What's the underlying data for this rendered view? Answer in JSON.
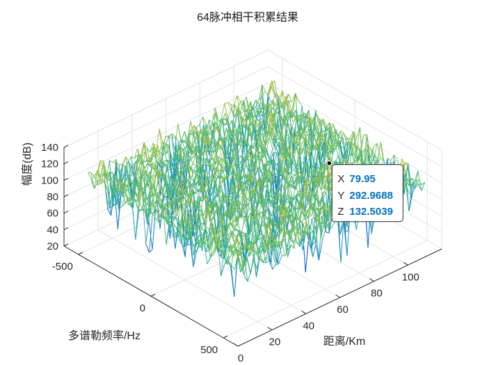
{
  "chart_data": {
    "type": "surface",
    "title": "64脉冲相干积累结果",
    "xlabel": "距离/Km",
    "ylabel": "多谱勒频率/Hz",
    "zlabel": "幅度(dB)",
    "x_range": [
      0,
      120
    ],
    "y_range": [
      -600,
      600
    ],
    "z_range": [
      20,
      140
    ],
    "x_ticks": [
      "0",
      "20",
      "40",
      "60",
      "80",
      "100"
    ],
    "y_ticks": [
      "-500",
      "0",
      "500"
    ],
    "z_ticks": [
      "20",
      "40",
      "60",
      "80",
      "100",
      "120",
      "140"
    ],
    "grid": true,
    "colormap": "parula",
    "noise_floor_db": 100,
    "peak": {
      "x": 79.95,
      "y": 292.9688,
      "z": 132.5039
    },
    "datatip": {
      "x_label": "X",
      "x_value": "79.95",
      "y_label": "Y",
      "y_value": "292.9688",
      "z_label": "Z",
      "z_value": "132.5039"
    }
  }
}
